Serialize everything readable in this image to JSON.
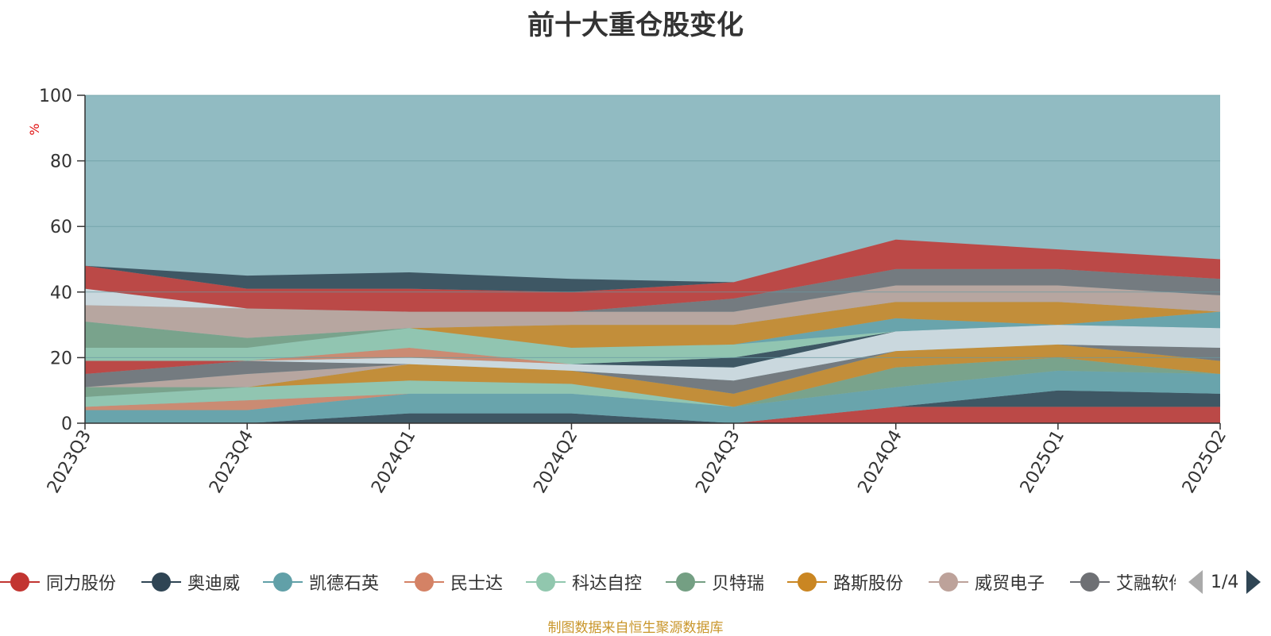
{
  "chart_data": {
    "type": "area",
    "title": "前十大重仓股变化",
    "ylabel": "%",
    "ylim": [
      0,
      100
    ],
    "yticks": [
      0,
      20,
      40,
      60,
      80,
      100
    ],
    "categories": [
      "2023Q3",
      "2023Q4",
      "2024Q1",
      "2024Q2",
      "2024Q3",
      "2024Q4",
      "2025Q1",
      "2025Q2"
    ],
    "stacked": true,
    "background_band_color": "#91bbc2",
    "grid": true,
    "legend_position": "bottom",
    "series": [
      {
        "name": "同力股份",
        "color": "#c23531",
        "values": [
          0,
          0,
          0,
          0,
          0,
          5,
          5,
          5
        ]
      },
      {
        "name": "奥迪威",
        "color": "#2f4554",
        "values": [
          0,
          0,
          3,
          3,
          0,
          0,
          5,
          4
        ]
      },
      {
        "name": "凯德石英",
        "color": "#61a0a8",
        "values": [
          4,
          4,
          6,
          6,
          5,
          6,
          6,
          6
        ]
      },
      {
        "name": "民士达",
        "color": "#d48265",
        "values": [
          1,
          3,
          0,
          0,
          0,
          0,
          0,
          0
        ]
      },
      {
        "name": "科达自控",
        "color": "#91c7ae",
        "values": [
          3,
          4,
          4,
          3,
          0,
          0,
          0,
          0
        ]
      },
      {
        "name": "贝特瑞",
        "color": "#749f83",
        "values": [
          3,
          0,
          0,
          0,
          0,
          6,
          4,
          0
        ]
      },
      {
        "name": "路斯股份",
        "color": "#ca8622",
        "values": [
          0,
          0,
          5,
          4,
          4,
          5,
          4,
          4
        ]
      },
      {
        "name": "威贸电子",
        "color": "#bda29a",
        "values": [
          0,
          4,
          0,
          0,
          0,
          0,
          0,
          0
        ]
      },
      {
        "name": "艾融软件",
        "color": "#6e7074",
        "values": [
          4,
          4,
          0,
          0,
          4,
          0,
          0,
          4
        ]
      },
      {
        "name": "",
        "color": "#c23531",
        "values": [
          4,
          0,
          0,
          0,
          0,
          0,
          0,
          0
        ]
      },
      {
        "name": "",
        "color": "#d4dde3",
        "values": [
          0,
          0,
          2,
          2,
          4,
          6,
          6,
          6
        ]
      },
      {
        "name": "",
        "color": "#2f4554",
        "values": [
          0,
          0,
          0,
          0,
          3,
          0,
          0,
          0
        ]
      },
      {
        "name": "",
        "color": "#d48265",
        "values": [
          0,
          0,
          3,
          0,
          0,
          0,
          0,
          0
        ]
      },
      {
        "name": "",
        "color": "#91c7ae",
        "values": [
          4,
          4,
          6,
          5,
          4,
          0,
          0,
          0
        ]
      },
      {
        "name": "",
        "color": "#61a0a8",
        "values": [
          0,
          0,
          0,
          0,
          0,
          4,
          0,
          5
        ]
      },
      {
        "name": "",
        "color": "#749f83",
        "values": [
          8,
          3,
          0,
          0,
          0,
          0,
          0,
          0
        ]
      },
      {
        "name": "",
        "color": "#ca8622",
        "values": [
          0,
          0,
          0,
          7,
          6,
          5,
          7,
          0
        ]
      },
      {
        "name": "",
        "color": "#bda29a",
        "values": [
          5,
          9,
          5,
          4,
          4,
          5,
          5,
          5
        ]
      },
      {
        "name": "",
        "color": "#d4dde3",
        "values": [
          5,
          0,
          0,
          0,
          0,
          0,
          0,
          0
        ]
      },
      {
        "name": "",
        "color": "#6e7074",
        "values": [
          0,
          0,
          0,
          0,
          4,
          5,
          5,
          5
        ]
      },
      {
        "name": "",
        "color": "#c23531",
        "values": [
          7,
          6,
          7,
          6,
          5,
          9,
          6,
          6
        ]
      },
      {
        "name": "",
        "color": "#2f4554",
        "values": [
          0,
          4,
          5,
          4,
          0,
          0,
          0,
          0
        ]
      }
    ]
  },
  "legend": {
    "items": [
      {
        "label": "同力股份",
        "color": "#c23531"
      },
      {
        "label": "奥迪威",
        "color": "#2f4554"
      },
      {
        "label": "凯德石英",
        "color": "#61a0a8"
      },
      {
        "label": "民士达",
        "color": "#d48265"
      },
      {
        "label": "科达自控",
        "color": "#91c7ae"
      },
      {
        "label": "贝特瑞",
        "color": "#749f83"
      },
      {
        "label": "路斯股份",
        "color": "#ca8622"
      },
      {
        "label": "威贸电子",
        "color": "#bda29a"
      },
      {
        "label": "艾融软件",
        "color": "#6e7074"
      }
    ],
    "page_text": "1/4"
  },
  "footer": {
    "note": "制图数据来自恒生聚源数据库"
  }
}
